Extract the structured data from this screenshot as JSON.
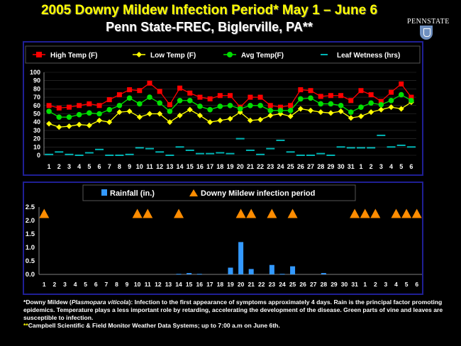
{
  "title": "2005 Downy Mildew Infection Period* May 1 – June 6",
  "subtitle": "Penn State-FREC, Biglerville, PA**",
  "logo_text": "PENNSTATE",
  "colors": {
    "high": "#ff0000",
    "low": "#ffff00",
    "avg": "#00e000",
    "wet": "#00b4b4",
    "rain": "#3399ff",
    "infection": "#ff8c00",
    "panel": "#1f1f95"
  },
  "chart_data": [
    {
      "type": "line",
      "categories": [
        "1",
        "2",
        "3",
        "4",
        "5",
        "6",
        "7",
        "8",
        "9",
        "10",
        "11",
        "12",
        "13",
        "14",
        "15",
        "16",
        "17",
        "18",
        "19",
        "20",
        "21",
        "22",
        "23",
        "24",
        "25",
        "26",
        "27",
        "28",
        "29",
        "30",
        "31",
        "1",
        "2",
        "3",
        "4",
        "5",
        "6"
      ],
      "ylim": [
        0,
        100
      ],
      "yticks": [
        0,
        10,
        20,
        30,
        40,
        50,
        60,
        70,
        80,
        90,
        100
      ],
      "series": [
        {
          "name": "High Temp (F)",
          "key": "high",
          "values": [
            60,
            57,
            58,
            60,
            62,
            60,
            67,
            73,
            79,
            78,
            87,
            77,
            61,
            81,
            75,
            70,
            68,
            72,
            72,
            58,
            70,
            70,
            60,
            58,
            60,
            79,
            78,
            71,
            72,
            72,
            66,
            78,
            73,
            65,
            76,
            86,
            70
          ]
        },
        {
          "name": "Low Temp (F)",
          "key": "low",
          "values": [
            38,
            34,
            35,
            37,
            36,
            42,
            40,
            52,
            53,
            46,
            50,
            50,
            40,
            48,
            55,
            48,
            40,
            42,
            44,
            52,
            42,
            43,
            48,
            50,
            47,
            56,
            54,
            52,
            51,
            53,
            45,
            47,
            52,
            55,
            58,
            56,
            64
          ]
        },
        {
          "name": "Avg Temp(F)",
          "key": "avg",
          "values": [
            53,
            46,
            46,
            49,
            51,
            50,
            55,
            60,
            69,
            62,
            70,
            63,
            53,
            66,
            66,
            59,
            55,
            59,
            60,
            56,
            60,
            60,
            54,
            54,
            54,
            68,
            69,
            62,
            62,
            60,
            52,
            58,
            63,
            61,
            66,
            73,
            66
          ]
        },
        {
          "name": "Leaf Wetness (hrs)",
          "key": "wet",
          "values": [
            1,
            4,
            1,
            0,
            3,
            7,
            0,
            0,
            1,
            9,
            8,
            4,
            0,
            10,
            6,
            2,
            2,
            3,
            2,
            20,
            6,
            1,
            8,
            18,
            4,
            0,
            0,
            2,
            0,
            10,
            9,
            9,
            9,
            24,
            10,
            12,
            10
          ]
        }
      ]
    },
    {
      "type": "bar",
      "categories": [
        "1",
        "2",
        "3",
        "4",
        "5",
        "6",
        "7",
        "8",
        "9",
        "10",
        "11",
        "12",
        "13",
        "14",
        "15",
        "16",
        "17",
        "18",
        "19",
        "20",
        "21",
        "22",
        "23",
        "24",
        "25",
        "26",
        "27",
        "28",
        "29",
        "30",
        "31",
        "1",
        "2",
        "3",
        "4",
        "5",
        "6"
      ],
      "ylim": [
        0,
        2.5
      ],
      "yticks": [
        "0.0",
        "0.5",
        "1.0",
        "1.5",
        "2.0",
        "2.5"
      ],
      "series": [
        {
          "name": "Rainfall (in.)",
          "key": "rain",
          "values": [
            0,
            0,
            0,
            0,
            0,
            0,
            0,
            0,
            0,
            0,
            0,
            0,
            0,
            0.02,
            0.05,
            0.02,
            0,
            0,
            0.25,
            1.2,
            0.2,
            0,
            0.35,
            0.02,
            0.3,
            0,
            0,
            0.05,
            0,
            0,
            0,
            0,
            0,
            0,
            0,
            0,
            0
          ]
        },
        {
          "name": "Downy Mildew infection period",
          "key": "infection",
          "marker_value": 2.25,
          "days": [
            0,
            9,
            10,
            13,
            19,
            20,
            22,
            24,
            30,
            31,
            32,
            34,
            35,
            36
          ]
        }
      ]
    }
  ],
  "footnote": {
    "line1a": "*Downy Mildew (",
    "line1b": "Plasmopara viticola",
    "line1c": "):  Infection to the first appearance of symptoms approximately 4 days.  Rain is the principal factor promoting epidemics.   Temperature plays a less important role by retarding, accelerating the development of the disease.  Green parts of vine and leaves are susceptible to infection.",
    "line2a": "**",
    "line2b": "Campbell Scientific  & Field Monitor Weather Data Systems; up to 7:00 a.m on June 6th."
  }
}
